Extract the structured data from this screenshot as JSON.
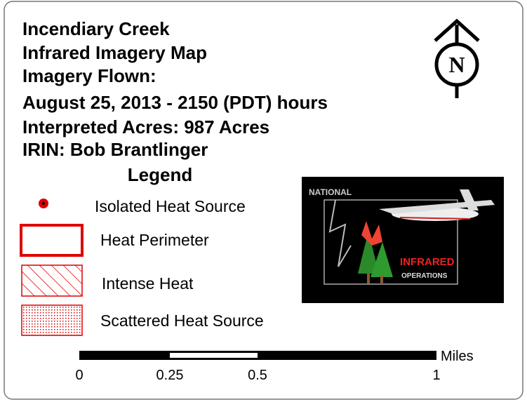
{
  "header": {
    "lines": [
      "Incendiary Creek",
      "Infrared Imagery Map",
      "Imagery Flown:",
      "August 25, 2013 - 2150 (PDT) hours",
      "Interpreted Acres: 987 Acres",
      "IRIN: Bob Brantlinger"
    ]
  },
  "north_arrow": {
    "label": "N"
  },
  "legend": {
    "title": "Legend",
    "items": [
      "Isolated Heat Source",
      "Heat Perimeter",
      "Intense Heat",
      "Scattered Heat Source"
    ]
  },
  "logo": {
    "texts": [
      "NATIONAL",
      "INFRARED",
      "OPERATIONS"
    ]
  },
  "scale_bar": {
    "labels": [
      "0",
      "0.25",
      "0.5",
      "1"
    ],
    "unit": "Miles"
  }
}
